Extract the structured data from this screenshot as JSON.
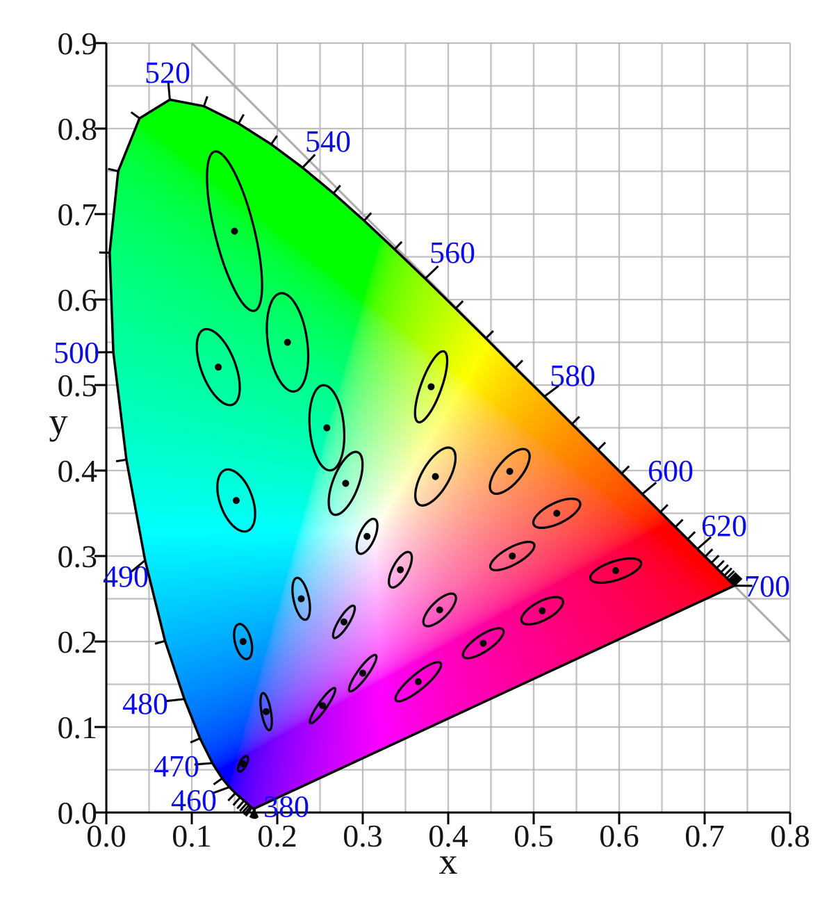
{
  "chart_data": {
    "type": "chromaticity-diagram",
    "xlabel": "x",
    "ylabel": "y",
    "xlim": [
      0.0,
      0.8
    ],
    "ylim": [
      0.0,
      0.9
    ],
    "x_tick_labels": [
      "0.0",
      "0.1",
      "0.2",
      "0.3",
      "0.4",
      "0.5",
      "0.6",
      "0.7",
      "0.8"
    ],
    "y_tick_labels": [
      "0.0",
      "0.1",
      "0.2",
      "0.3",
      "0.4",
      "0.5",
      "0.6",
      "0.7",
      "0.8",
      "0.9"
    ],
    "grid_step": 0.05,
    "diagonal_line": {
      "from": [
        0.1,
        0.9
      ],
      "to": [
        0.8,
        0.2
      ]
    },
    "colors": {
      "background": "#ffffff",
      "grid": "#b6b6b6",
      "diagonal": "#a8a8a8",
      "axis": "#000000",
      "tick_label": "#141414",
      "wavelength_label": "#0b0be6",
      "locus_outline": "#000000",
      "ellipse": "#000000"
    },
    "ellipse_magnification": 10,
    "wavelength_labels": [
      {
        "nm": 380,
        "label": "380",
        "x": 0.2106,
        "y": 0.0073,
        "tick": false
      },
      {
        "nm": 460,
        "label": "460",
        "x": 0.1024,
        "y": 0.0146,
        "tick": true
      },
      {
        "nm": 470,
        "label": "470",
        "x": 0.0821,
        "y": 0.0545,
        "tick": true
      },
      {
        "nm": 480,
        "label": "480",
        "x": 0.0455,
        "y": 0.1276,
        "tick": true
      },
      {
        "nm": 490,
        "label": "490",
        "x": 0.0228,
        "y": 0.2764,
        "tick": true
      },
      {
        "nm": 500,
        "label": "500",
        "x": -0.035,
        "y": 0.5382,
        "tick": true
      },
      {
        "nm": 520,
        "label": "520",
        "x": 0.0715,
        "y": 0.8659,
        "tick": true
      },
      {
        "nm": 540,
        "label": "540",
        "x": 0.2593,
        "y": 0.7854,
        "tick": true
      },
      {
        "nm": 560,
        "label": "560",
        "x": 0.4049,
        "y": 0.6553,
        "tick": true
      },
      {
        "nm": 580,
        "label": "580",
        "x": 0.5455,
        "y": 0.5114,
        "tick": true
      },
      {
        "nm": 600,
        "label": "600",
        "x": 0.6602,
        "y": 0.4,
        "tick": true
      },
      {
        "nm": 620,
        "label": "620",
        "x": 0.7228,
        "y": 0.3358,
        "tick": true
      },
      {
        "nm": 700,
        "label": "700",
        "x": 0.7732,
        "y": 0.265,
        "tick": true
      }
    ],
    "spectral_locus": [
      [
        380,
        0.1741,
        0.005
      ],
      [
        385,
        0.174,
        0.005
      ],
      [
        390,
        0.1738,
        0.0049
      ],
      [
        395,
        0.1736,
        0.0049
      ],
      [
        400,
        0.1733,
        0.0048
      ],
      [
        405,
        0.173,
        0.0048
      ],
      [
        410,
        0.1726,
        0.0048
      ],
      [
        415,
        0.1721,
        0.0048
      ],
      [
        420,
        0.1714,
        0.0051
      ],
      [
        425,
        0.1703,
        0.0058
      ],
      [
        430,
        0.1689,
        0.0069
      ],
      [
        435,
        0.1669,
        0.0086
      ],
      [
        440,
        0.1644,
        0.0109
      ],
      [
        445,
        0.1611,
        0.0138
      ],
      [
        450,
        0.1566,
        0.0177
      ],
      [
        455,
        0.151,
        0.0227
      ],
      [
        460,
        0.144,
        0.0297
      ],
      [
        465,
        0.1355,
        0.0399
      ],
      [
        470,
        0.1241,
        0.0578
      ],
      [
        475,
        0.1096,
        0.0868
      ],
      [
        480,
        0.0913,
        0.1327
      ],
      [
        485,
        0.0687,
        0.2007
      ],
      [
        490,
        0.0454,
        0.295
      ],
      [
        495,
        0.0235,
        0.4127
      ],
      [
        500,
        0.0082,
        0.5384
      ],
      [
        505,
        0.0039,
        0.6548
      ],
      [
        510,
        0.0139,
        0.7502
      ],
      [
        515,
        0.0389,
        0.812
      ],
      [
        520,
        0.0743,
        0.8338
      ],
      [
        525,
        0.1142,
        0.8262
      ],
      [
        530,
        0.1547,
        0.8059
      ],
      [
        535,
        0.1929,
        0.7816
      ],
      [
        540,
        0.2296,
        0.7543
      ],
      [
        545,
        0.2658,
        0.7243
      ],
      [
        550,
        0.3016,
        0.6923
      ],
      [
        555,
        0.3373,
        0.6588
      ],
      [
        560,
        0.3731,
        0.6245
      ],
      [
        565,
        0.4087,
        0.5896
      ],
      [
        570,
        0.4441,
        0.5547
      ],
      [
        575,
        0.4784,
        0.5202
      ],
      [
        580,
        0.5125,
        0.4866
      ],
      [
        585,
        0.5448,
        0.4544
      ],
      [
        590,
        0.5752,
        0.4242
      ],
      [
        595,
        0.6029,
        0.3965
      ],
      [
        600,
        0.627,
        0.3725
      ],
      [
        605,
        0.6482,
        0.3514
      ],
      [
        610,
        0.6658,
        0.334
      ],
      [
        615,
        0.6801,
        0.3197
      ],
      [
        620,
        0.6915,
        0.3083
      ],
      [
        625,
        0.7006,
        0.2993
      ],
      [
        630,
        0.7079,
        0.292
      ],
      [
        635,
        0.714,
        0.2859
      ],
      [
        640,
        0.719,
        0.2809
      ],
      [
        645,
        0.723,
        0.277
      ],
      [
        650,
        0.726,
        0.274
      ],
      [
        655,
        0.7283,
        0.2717
      ],
      [
        660,
        0.73,
        0.27
      ],
      [
        665,
        0.7311,
        0.2689
      ],
      [
        670,
        0.732,
        0.268
      ],
      [
        675,
        0.7327,
        0.2673
      ],
      [
        680,
        0.7334,
        0.2666
      ],
      [
        685,
        0.734,
        0.266
      ],
      [
        690,
        0.7344,
        0.2656
      ],
      [
        695,
        0.7346,
        0.2654
      ],
      [
        700,
        0.7347,
        0.2653
      ]
    ],
    "macadam_ellipses": [
      {
        "n": 1,
        "x": 0.16,
        "y": 0.057,
        "a": 1.0,
        "b": 0.4,
        "theta": 62
      },
      {
        "n": 2,
        "x": 0.187,
        "y": 0.118,
        "a": 2.2,
        "b": 0.55,
        "theta": 100
      },
      {
        "n": 3,
        "x": 0.253,
        "y": 0.125,
        "a": 2.5,
        "b": 0.5,
        "theta": 55
      },
      {
        "n": 4,
        "x": 0.15,
        "y": 0.68,
        "a": 9.6,
        "b": 2.3,
        "theta": 104
      },
      {
        "n": 5,
        "x": 0.131,
        "y": 0.521,
        "a": 4.7,
        "b": 2.0,
        "theta": 111
      },
      {
        "n": 6,
        "x": 0.212,
        "y": 0.55,
        "a": 5.8,
        "b": 2.3,
        "theta": 98
      },
      {
        "n": 7,
        "x": 0.258,
        "y": 0.45,
        "a": 5.0,
        "b": 2.0,
        "theta": 95
      },
      {
        "n": 8,
        "x": 0.152,
        "y": 0.365,
        "a": 3.8,
        "b": 1.9,
        "theta": 110
      },
      {
        "n": 9,
        "x": 0.28,
        "y": 0.385,
        "a": 3.9,
        "b": 1.5,
        "theta": 69
      },
      {
        "n": 10,
        "x": 0.38,
        "y": 0.498,
        "a": 4.4,
        "b": 1.2,
        "theta": 70
      },
      {
        "n": 11,
        "x": 0.16,
        "y": 0.2,
        "a": 2.1,
        "b": 0.95,
        "theta": 104
      },
      {
        "n": 12,
        "x": 0.228,
        "y": 0.25,
        "a": 2.5,
        "b": 0.9,
        "theta": 102
      },
      {
        "n": 13,
        "x": 0.305,
        "y": 0.323,
        "a": 2.2,
        "b": 0.9,
        "theta": 66
      },
      {
        "n": 14,
        "x": 0.385,
        "y": 0.393,
        "a": 3.8,
        "b": 1.6,
        "theta": 60
      },
      {
        "n": 15,
        "x": 0.472,
        "y": 0.399,
        "a": 3.2,
        "b": 1.4,
        "theta": 50
      },
      {
        "n": 16,
        "x": 0.527,
        "y": 0.35,
        "a": 3.0,
        "b": 1.2,
        "theta": 26
      },
      {
        "n": 17,
        "x": 0.475,
        "y": 0.3,
        "a": 2.9,
        "b": 1.0,
        "theta": 29
      },
      {
        "n": 18,
        "x": 0.51,
        "y": 0.236,
        "a": 2.7,
        "b": 1.1,
        "theta": 28
      },
      {
        "n": 19,
        "x": 0.596,
        "y": 0.283,
        "a": 3.1,
        "b": 1.1,
        "theta": 18
      },
      {
        "n": 20,
        "x": 0.344,
        "y": 0.284,
        "a": 2.3,
        "b": 0.9,
        "theta": 62
      },
      {
        "n": 21,
        "x": 0.39,
        "y": 0.237,
        "a": 2.5,
        "b": 1.0,
        "theta": 45
      },
      {
        "n": 22,
        "x": 0.441,
        "y": 0.198,
        "a": 2.8,
        "b": 0.95,
        "theta": 34
      },
      {
        "n": 23,
        "x": 0.278,
        "y": 0.223,
        "a": 2.2,
        "b": 0.6,
        "theta": 58
      },
      {
        "n": 24,
        "x": 0.3,
        "y": 0.163,
        "a": 2.6,
        "b": 0.6,
        "theta": 54
      },
      {
        "n": 25,
        "x": 0.365,
        "y": 0.153,
        "a": 3.4,
        "b": 0.9,
        "theta": 40
      }
    ]
  }
}
